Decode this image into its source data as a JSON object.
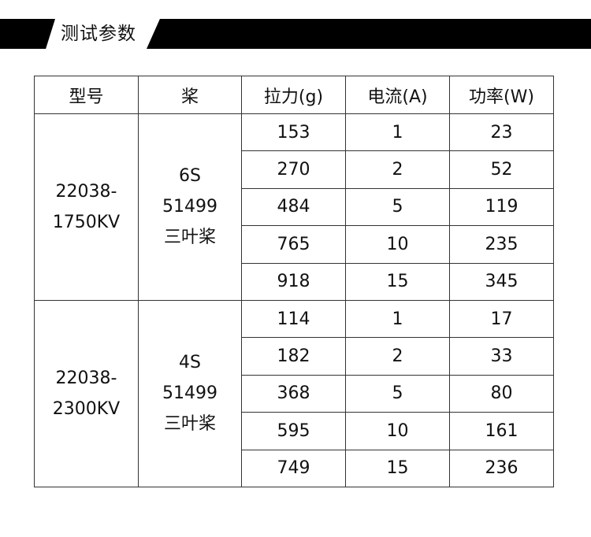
{
  "section_title": "测试参数",
  "table": {
    "headers": [
      "型号",
      "桨",
      "拉力(g)",
      "电流(A)",
      "功率(W)"
    ],
    "groups": [
      {
        "model_lines": [
          "22038-",
          "1750KV"
        ],
        "prop_lines": [
          "6S",
          "51499",
          "三叶桨"
        ],
        "rows": [
          [
            "153",
            "1",
            "23"
          ],
          [
            "270",
            "2",
            "52"
          ],
          [
            "484",
            "5",
            "119"
          ],
          [
            "765",
            "10",
            "235"
          ],
          [
            "918",
            "15",
            "345"
          ]
        ]
      },
      {
        "model_lines": [
          "22038-",
          "2300KV"
        ],
        "prop_lines": [
          "4S",
          "51499",
          "三叶桨"
        ],
        "rows": [
          [
            "114",
            "1",
            "17"
          ],
          [
            "182",
            "2",
            "33"
          ],
          [
            "368",
            "5",
            "80"
          ],
          [
            "595",
            "10",
            "161"
          ],
          [
            "749",
            "15",
            "236"
          ]
        ]
      }
    ]
  }
}
